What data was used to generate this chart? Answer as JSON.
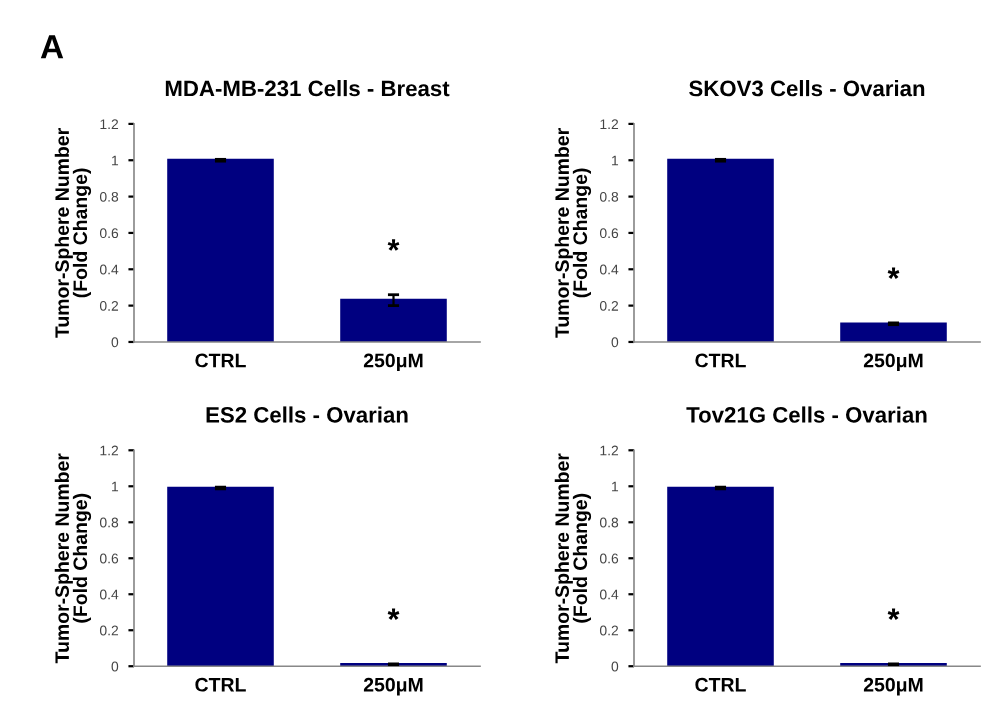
{
  "chart_data": [
    {
      "type": "bar",
      "title": "MDA-MB-231 Cells - Breast",
      "ylabel": "Tumor-Sphere Number\n(Fold Change)",
      "categories": [
        "CTRL",
        "250μM"
      ],
      "values": [
        1.0,
        0.23
      ],
      "errors": [
        0.005,
        0.03
      ],
      "color": "#000080",
      "ylim": [
        0,
        1.2
      ],
      "yticks": [
        0,
        0.2,
        0.4,
        0.6,
        0.8,
        1,
        1.2
      ],
      "grid": false,
      "annotations": [
        "A",
        "*"
      ]
    },
    {
      "type": "bar",
      "title": "SKOV3 Cells - Ovarian",
      "ylabel": "Tumor-Sphere Number\n(Fold Change)",
      "categories": [
        "CTRL",
        "250μM"
      ],
      "values": [
        1.0,
        0.1
      ],
      "errors": [
        0.005,
        0.005
      ],
      "color": "#000080",
      "ylim": [
        0,
        1.2
      ],
      "yticks": [
        0,
        0.2,
        0.4,
        0.6,
        0.8,
        1,
        1.2
      ],
      "grid": false,
      "annotations": [
        "*"
      ]
    },
    {
      "type": "bar",
      "title": "ES2 Cells - Ovarian",
      "ylabel": "Tumor-Sphere Number\n(Fold Change)",
      "categories": [
        "CTRL",
        "250μM"
      ],
      "values": [
        0.99,
        0.01
      ],
      "errors": [
        0.005,
        0.003
      ],
      "color": "#000080",
      "ylim": [
        0,
        1.2
      ],
      "yticks": [
        0,
        0.2,
        0.4,
        0.6,
        0.8,
        1,
        1.2
      ],
      "grid": false,
      "annotations": [
        "*"
      ]
    },
    {
      "type": "bar",
      "title": "Tov21G Cells - Ovarian",
      "ylabel": "Tumor-Sphere Number\n(Fold Change)",
      "categories": [
        "CTRL",
        "250μM"
      ],
      "values": [
        0.99,
        0.01
      ],
      "errors": [
        0.005,
        0.003
      ],
      "color": "#000080",
      "ylim": [
        0,
        1.2
      ],
      "yticks": [
        0,
        0.2,
        0.4,
        0.6,
        0.8,
        1,
        1.2
      ],
      "grid": false,
      "annotations": [
        "*"
      ]
    }
  ]
}
